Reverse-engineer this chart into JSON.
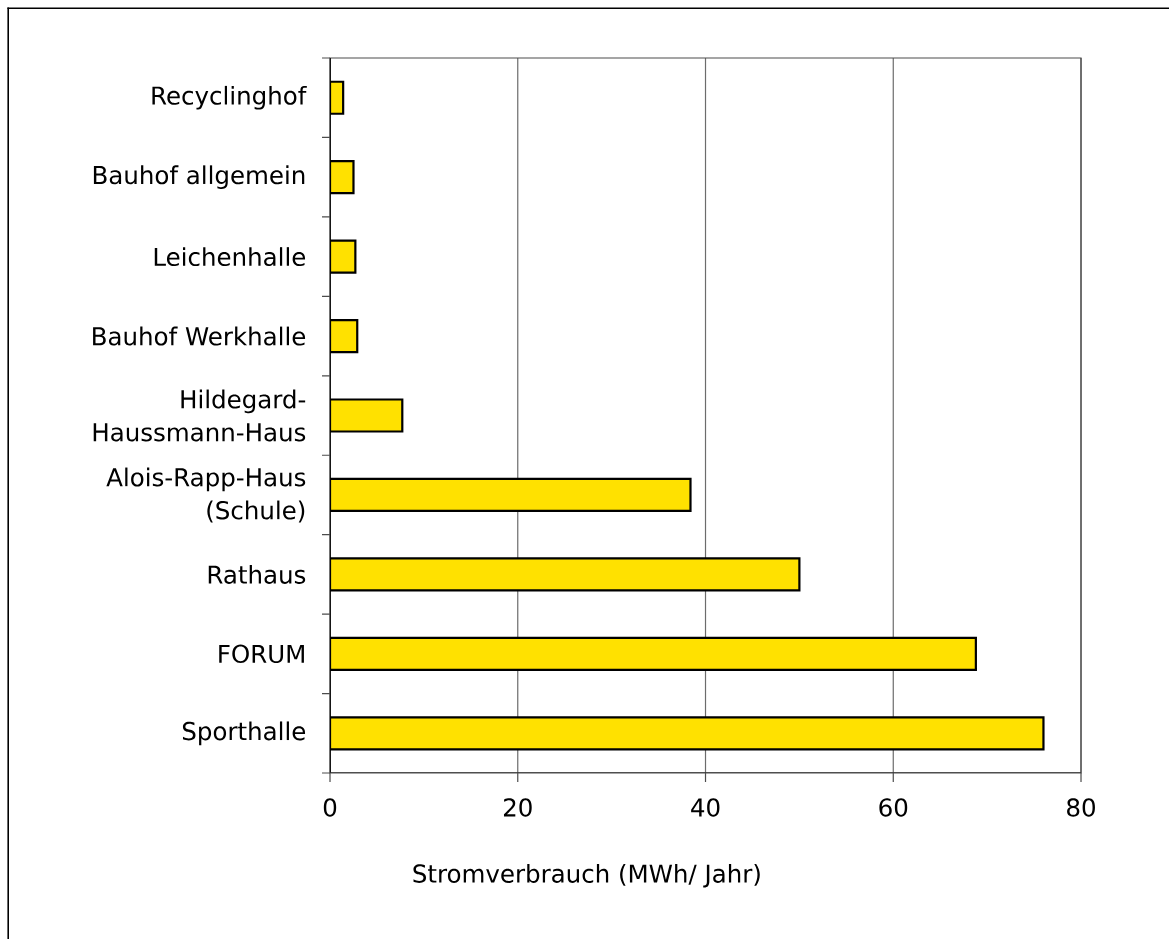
{
  "chart_data": {
    "type": "bar",
    "orientation": "horizontal",
    "categories": [
      "Recyclinghof",
      "Bauhof allgemein",
      "Leichenhalle",
      "Bauhof Werkhalle",
      "Hildegard-Haussmann-Haus",
      "Alois-Rapp-Haus (Schule)",
      "Rathaus",
      "FORUM",
      "Sporthalle"
    ],
    "values": [
      1.4,
      2.5,
      2.7,
      2.9,
      7.7,
      38.4,
      50.0,
      68.8,
      76.0
    ],
    "color": "#ffe100",
    "xlabel": "Stromverbrauch (MWh/ Jahr)",
    "xlim": [
      0,
      80
    ],
    "xticks": [
      0,
      20,
      40,
      60,
      80
    ],
    "grid": "x"
  }
}
